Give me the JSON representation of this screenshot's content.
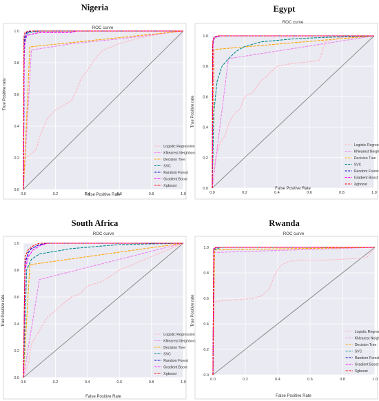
{
  "chart_data": [
    {
      "type": "line",
      "panel_title": "Nigeria",
      "title": "ROC curve",
      "xlabel": "False Positive Rate",
      "ylabel": "True Positive rate",
      "xlim": [
        0,
        1
      ],
      "ylim": [
        0,
        1
      ],
      "xticks": [
        "0.0",
        "0.2",
        "0.4",
        "0.6",
        "0.8",
        "1.0"
      ],
      "yticks": [
        "0.0",
        "0.2",
        "0.4",
        "0.6",
        "0.8",
        "1.0"
      ],
      "grid": true,
      "legend": "bottom-right",
      "diagonal": true,
      "series": [
        {
          "name": "Logistic Regression",
          "color": "#ffb6c1",
          "points": [
            [
              0,
              0
            ],
            [
              0.01,
              0.2
            ],
            [
              0.03,
              0.21
            ],
            [
              0.05,
              0.23
            ],
            [
              0.08,
              0.25
            ],
            [
              0.1,
              0.33
            ],
            [
              0.13,
              0.4
            ],
            [
              0.15,
              0.45
            ],
            [
              0.2,
              0.5
            ],
            [
              0.25,
              0.53
            ],
            [
              0.3,
              0.56
            ],
            [
              0.33,
              0.62
            ],
            [
              0.36,
              0.7
            ],
            [
              0.4,
              0.75
            ],
            [
              0.43,
              0.8
            ],
            [
              0.47,
              0.85
            ],
            [
              0.5,
              0.88
            ],
            [
              0.55,
              0.9
            ],
            [
              0.6,
              0.92
            ],
            [
              0.7,
              0.95
            ],
            [
              0.8,
              0.97
            ],
            [
              0.9,
              0.99
            ],
            [
              1,
              1
            ]
          ]
        },
        {
          "name": "KNearest Neighbors",
          "color": "#ee82ee",
          "points": [
            [
              0,
              0
            ],
            [
              0.05,
              0.88
            ],
            [
              0.3,
              0.92
            ],
            [
              0.6,
              0.95
            ],
            [
              1,
              1
            ]
          ]
        },
        {
          "name": "Decision Tree",
          "color": "#ffa500",
          "points": [
            [
              0,
              0
            ],
            [
              0.04,
              0.9
            ],
            [
              1,
              1
            ]
          ]
        },
        {
          "name": "SVC",
          "color": "#008b8b",
          "points": [
            [
              0,
              0
            ],
            [
              0.005,
              0.85
            ],
            [
              0.01,
              0.95
            ],
            [
              0.03,
              0.99
            ],
            [
              0.1,
              1
            ],
            [
              1,
              1
            ]
          ]
        },
        {
          "name": "Random Forest",
          "color": "#0000cd",
          "points": [
            [
              0,
              0
            ],
            [
              0.005,
              0.95
            ],
            [
              0.02,
              0.99
            ],
            [
              0.05,
              1
            ],
            [
              1,
              1
            ]
          ]
        },
        {
          "name": "Gradient Boost",
          "color": "#ff00ff",
          "points": [
            [
              0,
              0
            ],
            [
              0.005,
              0.9
            ],
            [
              0.02,
              0.97
            ],
            [
              0.05,
              0.98
            ],
            [
              0.1,
              0.99
            ],
            [
              0.3,
              0.99
            ],
            [
              0.33,
              1
            ],
            [
              1,
              1
            ]
          ]
        },
        {
          "name": "Xgboost",
          "color": "#ff0000",
          "points": [
            [
              0,
              0
            ],
            [
              0.003,
              0.96
            ],
            [
              0.01,
              0.99
            ],
            [
              0.03,
              1
            ],
            [
              1,
              1
            ]
          ]
        }
      ]
    },
    {
      "type": "line",
      "panel_title": "Egypt",
      "title": "ROC curve",
      "xlabel": "False Positive Rate",
      "ylabel": "True Positive rate",
      "xlim": [
        0,
        1
      ],
      "ylim": [
        0,
        1
      ],
      "xticks": [
        "0.0",
        "0.2",
        "0.4",
        "0.6",
        "0.8",
        "1.0"
      ],
      "yticks": [
        "0.0",
        "0.2",
        "0.4",
        "0.6",
        "0.8",
        "1.0"
      ],
      "grid": true,
      "legend": "bottom-right",
      "diagonal": true,
      "series": [
        {
          "name": "Logistic Regression",
          "color": "#ffb6c1",
          "points": [
            [
              0,
              0
            ],
            [
              0.02,
              0.2
            ],
            [
              0.05,
              0.3
            ],
            [
              0.08,
              0.35
            ],
            [
              0.1,
              0.42
            ],
            [
              0.13,
              0.48
            ],
            [
              0.17,
              0.52
            ],
            [
              0.2,
              0.6
            ],
            [
              0.25,
              0.63
            ],
            [
              0.3,
              0.7
            ],
            [
              0.35,
              0.75
            ],
            [
              0.4,
              0.8
            ],
            [
              0.5,
              0.82
            ],
            [
              0.6,
              0.83
            ],
            [
              0.66,
              0.84
            ],
            [
              0.68,
              0.9
            ],
            [
              0.7,
              0.96
            ],
            [
              0.8,
              0.99
            ],
            [
              1,
              1
            ]
          ]
        },
        {
          "name": "KNearest Neighbors",
          "color": "#ee82ee",
          "points": [
            [
              0,
              0
            ],
            [
              0.1,
              0.85
            ],
            [
              1,
              1
            ]
          ]
        },
        {
          "name": "Decision Tree",
          "color": "#ffa500",
          "points": [
            [
              0,
              0
            ],
            [
              0.01,
              0.91
            ],
            [
              1,
              1
            ]
          ]
        },
        {
          "name": "SVC",
          "color": "#008b8b",
          "points": [
            [
              0,
              0
            ],
            [
              0.01,
              0.5
            ],
            [
              0.03,
              0.7
            ],
            [
              0.06,
              0.8
            ],
            [
              0.1,
              0.85
            ],
            [
              0.15,
              0.9
            ],
            [
              0.2,
              0.93
            ],
            [
              0.3,
              0.96
            ],
            [
              0.5,
              0.98
            ],
            [
              0.7,
              0.99
            ],
            [
              1,
              1
            ]
          ]
        },
        {
          "name": "Random Forest",
          "color": "#0000cd",
          "points": [
            [
              0,
              0
            ],
            [
              0.003,
              0.93
            ],
            [
              0.01,
              0.99
            ],
            [
              0.05,
              1
            ],
            [
              1,
              1
            ]
          ]
        },
        {
          "name": "Gradient Boost",
          "color": "#ff00ff",
          "points": [
            [
              0,
              0
            ],
            [
              0.005,
              0.97
            ],
            [
              0.02,
              0.99
            ],
            [
              0.05,
              1
            ],
            [
              1,
              1
            ]
          ]
        },
        {
          "name": "Xgboost",
          "color": "#ff0000",
          "points": [
            [
              0,
              0
            ],
            [
              0.003,
              0.96
            ],
            [
              0.01,
              0.99
            ],
            [
              0.03,
              1
            ],
            [
              1,
              1
            ]
          ]
        }
      ]
    },
    {
      "type": "line",
      "panel_title": "South Africa",
      "title": "ROC curve",
      "xlabel": "False Positive Rate",
      "ylabel": "True Positive rate",
      "xlim": [
        0,
        1
      ],
      "ylim": [
        0,
        1
      ],
      "xticks": [
        "0.0",
        "0.2",
        "0.4",
        "0.6",
        "0.8",
        "1.0"
      ],
      "yticks": [
        "0.0",
        "0.2",
        "0.4",
        "0.6",
        "0.8",
        "1.0"
      ],
      "grid": true,
      "legend": "bottom-right",
      "diagonal": true,
      "series": [
        {
          "name": "Logistic Regression",
          "color": "#ffb6c1",
          "points": [
            [
              0,
              0
            ],
            [
              0.03,
              0.1
            ],
            [
              0.05,
              0.25
            ],
            [
              0.1,
              0.35
            ],
            [
              0.15,
              0.45
            ],
            [
              0.2,
              0.5
            ],
            [
              0.25,
              0.55
            ],
            [
              0.3,
              0.6
            ],
            [
              0.35,
              0.62
            ],
            [
              0.4,
              0.68
            ],
            [
              0.5,
              0.72
            ],
            [
              0.6,
              0.8
            ],
            [
              0.7,
              0.85
            ],
            [
              0.8,
              0.9
            ],
            [
              0.9,
              0.95
            ],
            [
              1,
              1
            ]
          ]
        },
        {
          "name": "KNearest Neighbors",
          "color": "#ee82ee",
          "points": [
            [
              0,
              0
            ],
            [
              0.1,
              0.73
            ],
            [
              1,
              1
            ]
          ]
        },
        {
          "name": "Decision Tree",
          "color": "#ffa500",
          "points": [
            [
              0,
              0
            ],
            [
              0.04,
              0.84
            ],
            [
              1,
              1
            ]
          ]
        },
        {
          "name": "SVC",
          "color": "#008b8b",
          "points": [
            [
              0,
              0
            ],
            [
              0.02,
              0.8
            ],
            [
              0.05,
              0.88
            ],
            [
              0.1,
              0.92
            ],
            [
              0.2,
              0.94
            ],
            [
              0.3,
              0.96
            ],
            [
              0.4,
              0.97
            ],
            [
              0.5,
              0.98
            ],
            [
              0.6,
              0.99
            ],
            [
              1,
              1
            ]
          ]
        },
        {
          "name": "Random Forest",
          "color": "#0000cd",
          "points": [
            [
              0,
              0
            ],
            [
              0.01,
              0.85
            ],
            [
              0.03,
              0.93
            ],
            [
              0.05,
              0.96
            ],
            [
              0.1,
              0.99
            ],
            [
              0.15,
              1
            ],
            [
              1,
              1
            ]
          ]
        },
        {
          "name": "Gradient Boost",
          "color": "#ff00ff",
          "points": [
            [
              0,
              0
            ],
            [
              0.01,
              0.8
            ],
            [
              0.03,
              0.9
            ],
            [
              0.06,
              0.95
            ],
            [
              0.1,
              0.98
            ],
            [
              0.15,
              1
            ],
            [
              1,
              1
            ]
          ]
        },
        {
          "name": "Xgboost",
          "color": "#ff0000",
          "points": [
            [
              0,
              0
            ],
            [
              0.01,
              0.9
            ],
            [
              0.03,
              0.95
            ],
            [
              0.06,
              0.98
            ],
            [
              0.1,
              1
            ],
            [
              1,
              1
            ]
          ]
        }
      ]
    },
    {
      "type": "line",
      "panel_title": "Rwanda",
      "title": "ROC curve",
      "xlabel": "False Positive Rate",
      "ylabel": "True Positive rate",
      "xlim": [
        0,
        1
      ],
      "ylim": [
        0,
        1
      ],
      "xticks": [
        "0.0",
        "0.2",
        "0.4",
        "0.6",
        "0.8",
        "1.0"
      ],
      "yticks": [
        "0.0",
        "0.2",
        "0.4",
        "0.6",
        "0.8",
        "1.0"
      ],
      "grid": true,
      "legend": "bottom-right",
      "diagonal": true,
      "series": [
        {
          "name": "Logistic Regression",
          "color": "#ffb6c1",
          "points": [
            [
              0,
              0
            ],
            [
              0.003,
              0.57
            ],
            [
              0.05,
              0.58
            ],
            [
              0.15,
              0.59
            ],
            [
              0.25,
              0.6
            ],
            [
              0.3,
              0.62
            ],
            [
              0.35,
              0.68
            ],
            [
              0.38,
              0.78
            ],
            [
              0.42,
              0.86
            ],
            [
              0.47,
              0.89
            ],
            [
              0.55,
              0.9
            ],
            [
              0.7,
              0.9
            ],
            [
              0.85,
              0.91
            ],
            [
              0.95,
              0.92
            ],
            [
              1,
              1
            ]
          ]
        },
        {
          "name": "KNearest Neighbors",
          "color": "#ee82ee",
          "points": [
            [
              0,
              0
            ],
            [
              0.01,
              0.96
            ],
            [
              1,
              1
            ]
          ]
        },
        {
          "name": "Decision Tree",
          "color": "#ffa500",
          "points": [
            [
              0,
              0
            ],
            [
              0.01,
              0.98
            ],
            [
              1,
              1
            ]
          ]
        },
        {
          "name": "SVC",
          "color": "#008b8b",
          "points": [
            [
              0,
              0
            ],
            [
              0.005,
              0.98
            ],
            [
              0.05,
              1
            ],
            [
              1,
              1
            ]
          ]
        },
        {
          "name": "Random Forest",
          "color": "#0000cd",
          "points": [
            [
              0,
              0
            ],
            [
              0.005,
              0.99
            ],
            [
              0.03,
              1
            ],
            [
              1,
              1
            ]
          ]
        },
        {
          "name": "Gradient Boost",
          "color": "#ff00ff",
          "points": [
            [
              0,
              0
            ],
            [
              0.005,
              0.99
            ],
            [
              0.03,
              1
            ],
            [
              1,
              1
            ]
          ]
        },
        {
          "name": "Xgboost",
          "color": "#ff0000",
          "points": [
            [
              0,
              0
            ],
            [
              0.005,
              0.99
            ],
            [
              0.02,
              1
            ],
            [
              1,
              1
            ]
          ]
        }
      ]
    }
  ]
}
